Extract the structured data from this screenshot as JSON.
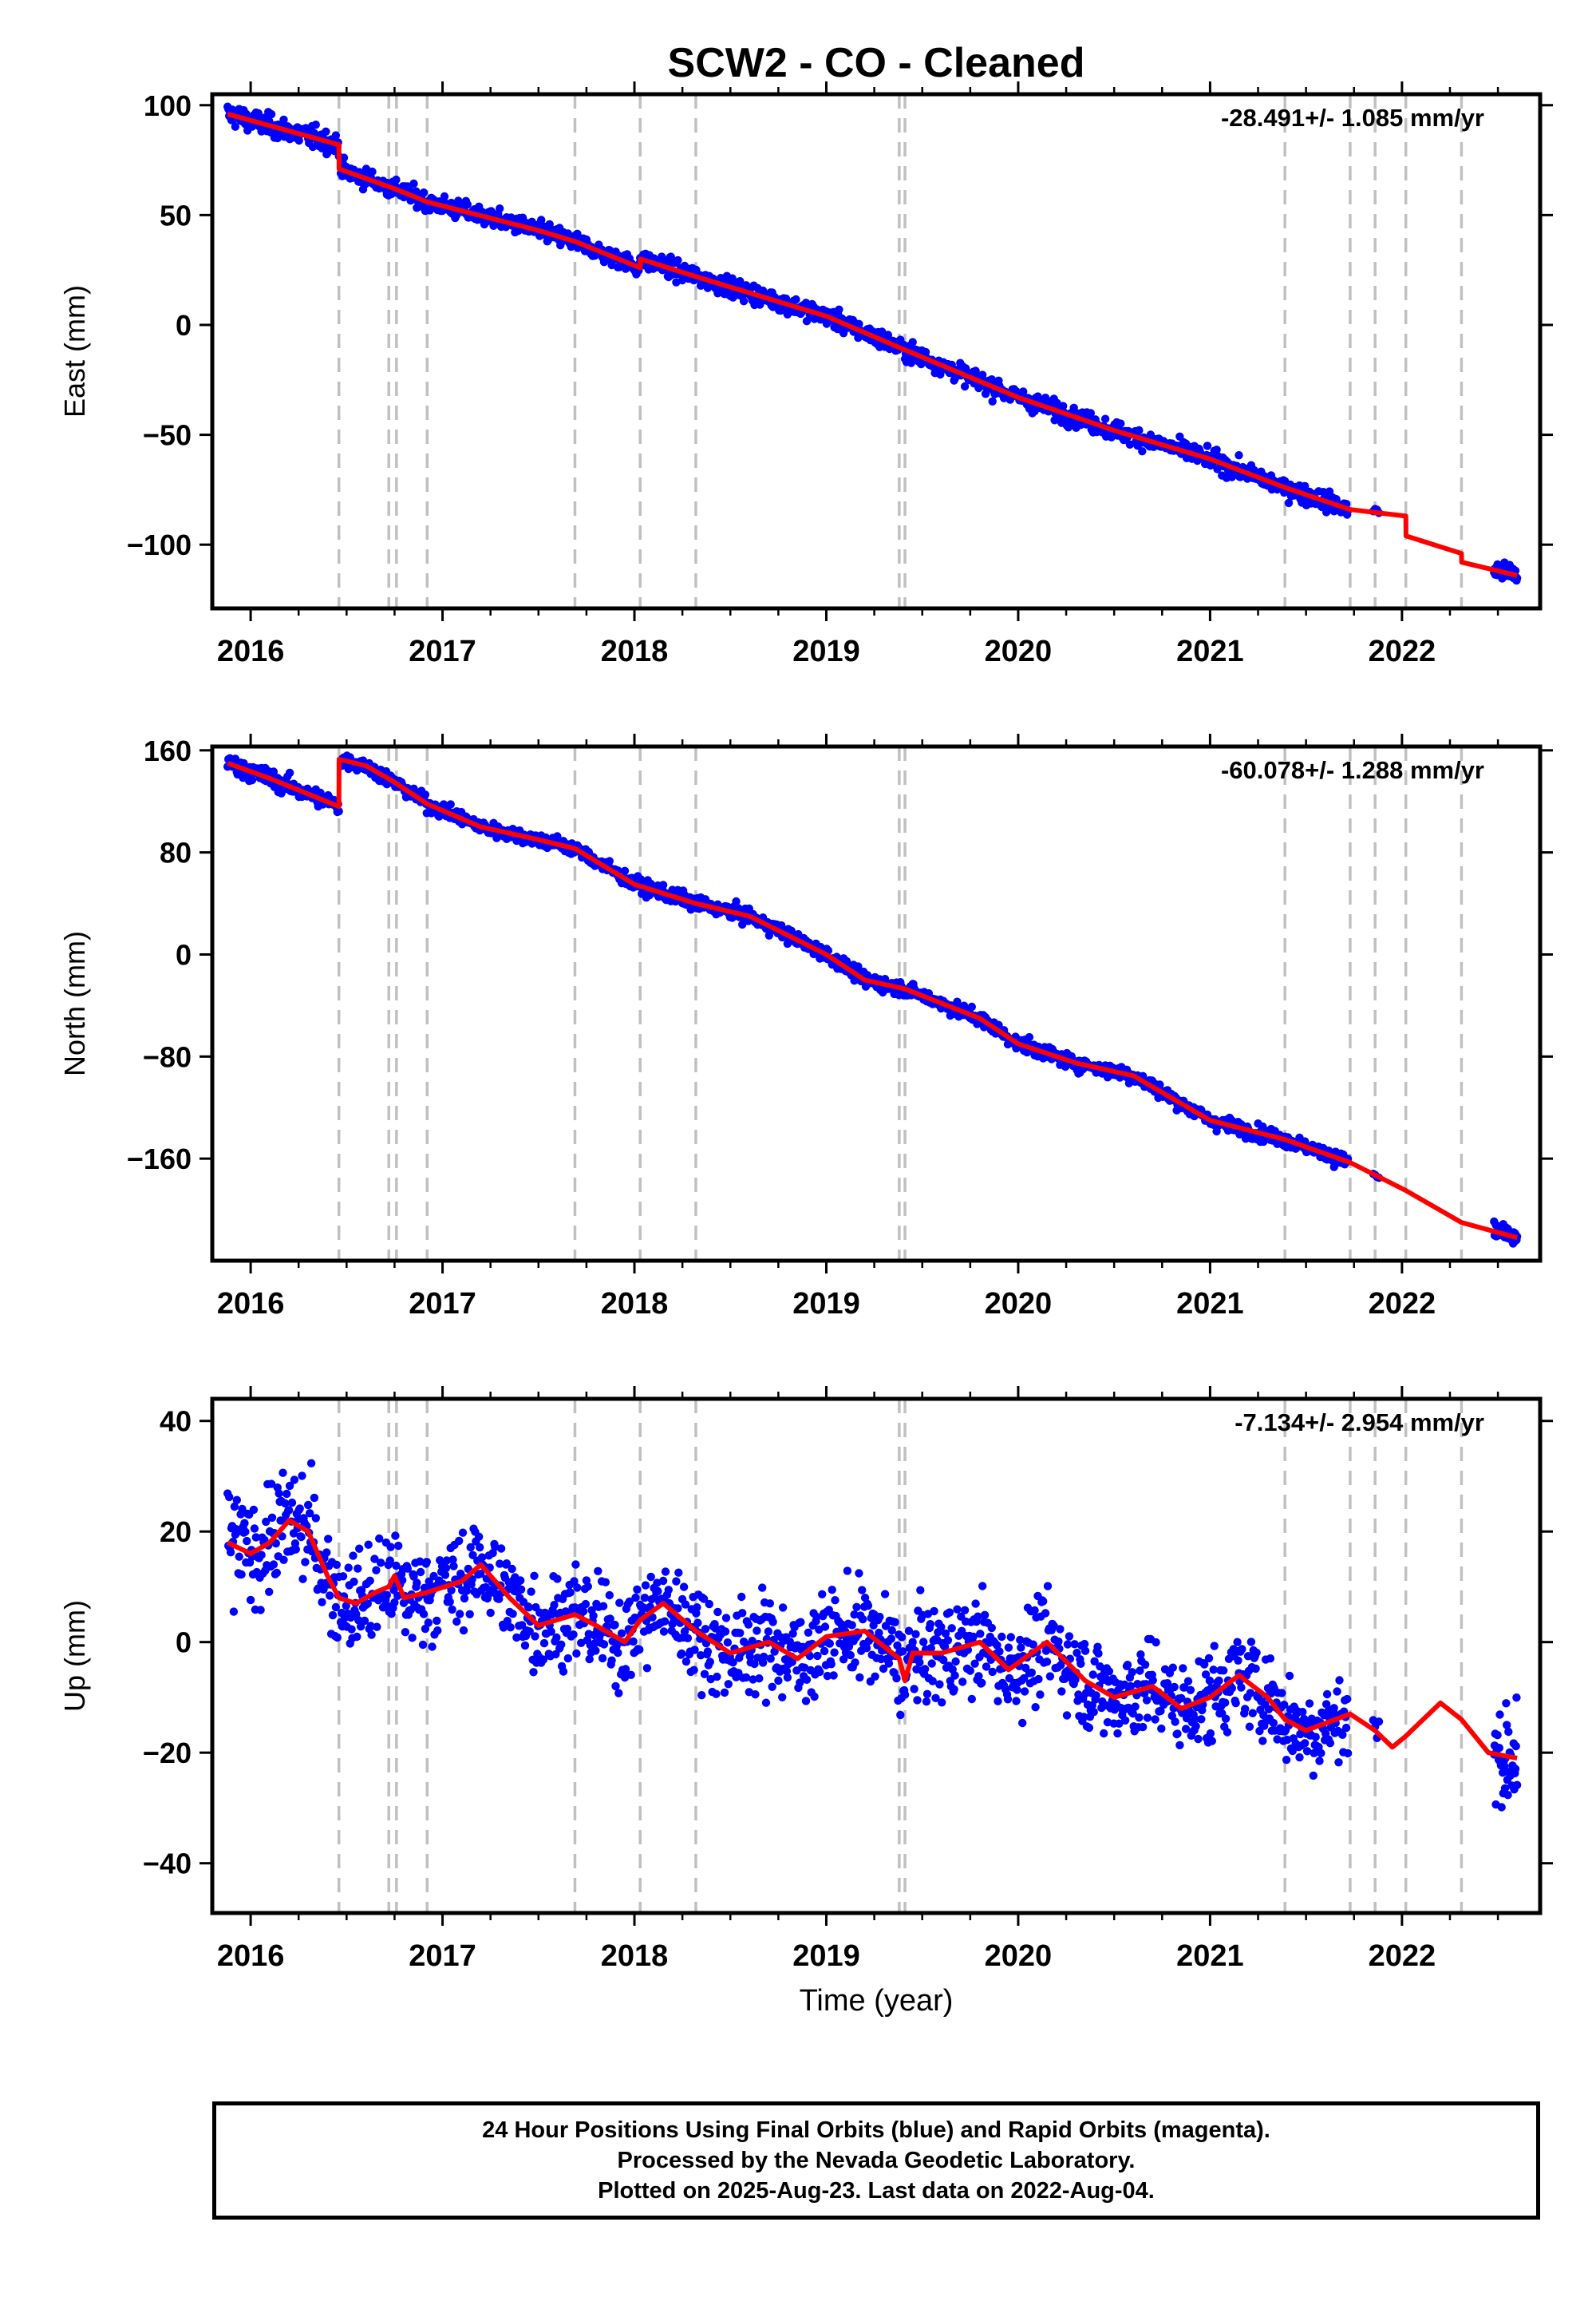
{
  "title": "SCW2  - CO - Cleaned",
  "x_axis_label": "Time (year)",
  "footer": {
    "line1": "24 Hour Positions Using Final Orbits (blue) and Rapid Orbits (magenta).",
    "line2": "Processed by the Nevada Geodetic Laboratory.",
    "line3": "Plotted on 2025-Aug-23. Last data on 2022-Aug-04."
  },
  "colors": {
    "points": "#0000ff",
    "model": "#ff0000",
    "offsets": "#c0c0c0",
    "frame": "#000000"
  },
  "chart_data": [
    {
      "type": "scatter",
      "ylabel": "East (mm)",
      "rate_text": "-28.491+/- 1.085 mm/yr",
      "xlim": [
        2015.8,
        2022.72
      ],
      "ylim": [
        -129,
        105
      ],
      "yticks": [
        100,
        50,
        0,
        -50,
        -100
      ],
      "xticks": [
        2016,
        2017,
        2018,
        2019,
        2020,
        2021,
        2022
      ],
      "offset_lines": [
        2016.46,
        2016.72,
        2016.76,
        2016.92,
        2017.69,
        2018.03,
        2018.32,
        2019.38,
        2019.41,
        2021.39,
        2021.73,
        2021.86,
        2022.02,
        2022.31
      ],
      "model_line": [
        [
          2015.88,
          96
        ],
        [
          2016.46,
          82
        ],
        [
          2016.461,
          71
        ],
        [
          2016.75,
          62
        ],
        [
          2016.92,
          56
        ],
        [
          2017.5,
          43
        ],
        [
          2017.69,
          38
        ],
        [
          2018.03,
          26
        ],
        [
          2018.031,
          30
        ],
        [
          2018.32,
          22
        ],
        [
          2019.0,
          4
        ],
        [
          2019.4,
          -11
        ],
        [
          2020.0,
          -33
        ],
        [
          2020.5,
          -48
        ],
        [
          2021.0,
          -61
        ],
        [
          2021.39,
          -74
        ],
        [
          2021.73,
          -84
        ],
        [
          2022.02,
          -87
        ],
        [
          2022.021,
          -96
        ],
        [
          2022.31,
          -104
        ],
        [
          2022.311,
          -108
        ],
        [
          2022.6,
          -114
        ]
      ],
      "point_segments": [
        {
          "t0": 2015.88,
          "t1": 2016.46,
          "step": 0.004,
          "noise": 3.5
        },
        {
          "t0": 2016.47,
          "t1": 2021.72,
          "step": 0.004,
          "noise": 3.0
        },
        {
          "t0": 2021.85,
          "t1": 2021.88,
          "step": 0.01,
          "noise": 2.0
        },
        {
          "t0": 2022.48,
          "t1": 2022.6,
          "step": 0.003,
          "noise": 3.0
        }
      ]
    },
    {
      "type": "scatter",
      "ylabel": "North (mm)",
      "rate_text": "-60.078+/- 1.288 mm/yr",
      "xlim": [
        2015.8,
        2022.72
      ],
      "ylim": [
        -240,
        163
      ],
      "yticks": [
        160,
        80,
        0,
        -80,
        -160
      ],
      "xticks": [
        2016,
        2017,
        2018,
        2019,
        2020,
        2021,
        2022
      ],
      "offset_lines": [
        2016.46,
        2016.72,
        2016.76,
        2016.92,
        2017.69,
        2018.03,
        2018.32,
        2019.38,
        2019.41,
        2021.39,
        2021.73,
        2021.86,
        2022.02,
        2022.31
      ],
      "model_line": [
        [
          2015.88,
          150
        ],
        [
          2016.1,
          138
        ],
        [
          2016.46,
          116
        ],
        [
          2016.461,
          153
        ],
        [
          2016.6,
          148
        ],
        [
          2016.75,
          135
        ],
        [
          2016.92,
          118
        ],
        [
          2017.2,
          100
        ],
        [
          2017.5,
          90
        ],
        [
          2017.69,
          83
        ],
        [
          2018.0,
          55
        ],
        [
          2018.32,
          40
        ],
        [
          2018.6,
          30
        ],
        [
          2019.0,
          0
        ],
        [
          2019.2,
          -20
        ],
        [
          2019.41,
          -27
        ],
        [
          2019.8,
          -50
        ],
        [
          2020.0,
          -70
        ],
        [
          2020.3,
          -85
        ],
        [
          2020.6,
          -95
        ],
        [
          2021.0,
          -130
        ],
        [
          2021.39,
          -145
        ],
        [
          2021.73,
          -163
        ],
        [
          2022.02,
          -185
        ],
        [
          2022.31,
          -210
        ],
        [
          2022.6,
          -222
        ]
      ],
      "point_segments": [
        {
          "t0": 2015.88,
          "t1": 2016.46,
          "step": 0.004,
          "noise": 5.0
        },
        {
          "t0": 2016.47,
          "t1": 2021.72,
          "step": 0.004,
          "noise": 4.0
        },
        {
          "t0": 2021.85,
          "t1": 2021.88,
          "step": 0.01,
          "noise": 2.0
        },
        {
          "t0": 2022.48,
          "t1": 2022.6,
          "step": 0.003,
          "noise": 5.0
        }
      ]
    },
    {
      "type": "scatter",
      "ylabel": "Up (mm)",
      "rate_text": "-7.134+/- 2.954 mm/yr",
      "xlim": [
        2015.8,
        2022.72
      ],
      "ylim": [
        -49,
        44
      ],
      "yticks": [
        40,
        20,
        0,
        -20,
        -40
      ],
      "xticks": [
        2016,
        2017,
        2018,
        2019,
        2020,
        2021,
        2022
      ],
      "offset_lines": [
        2016.46,
        2016.72,
        2016.76,
        2016.92,
        2017.69,
        2018.03,
        2018.32,
        2019.38,
        2019.41,
        2021.39,
        2021.73,
        2021.86,
        2022.02,
        2022.31
      ],
      "model_line": [
        [
          2015.88,
          18
        ],
        [
          2016.0,
          16
        ],
        [
          2016.1,
          18
        ],
        [
          2016.2,
          22
        ],
        [
          2016.3,
          20
        ],
        [
          2016.4,
          12
        ],
        [
          2016.46,
          8
        ],
        [
          2016.55,
          7
        ],
        [
          2016.65,
          9
        ],
        [
          2016.72,
          10
        ],
        [
          2016.75,
          12
        ],
        [
          2016.8,
          8
        ],
        [
          2016.92,
          9
        ],
        [
          2017.1,
          11
        ],
        [
          2017.2,
          14
        ],
        [
          2017.35,
          8
        ],
        [
          2017.5,
          3
        ],
        [
          2017.69,
          5
        ],
        [
          2017.8,
          3
        ],
        [
          2017.95,
          0
        ],
        [
          2018.03,
          4
        ],
        [
          2018.15,
          7
        ],
        [
          2018.32,
          2
        ],
        [
          2018.5,
          -2
        ],
        [
          2018.7,
          0
        ],
        [
          2018.85,
          -3
        ],
        [
          2019.0,
          1
        ],
        [
          2019.2,
          2
        ],
        [
          2019.38,
          -3
        ],
        [
          2019.41,
          -7
        ],
        [
          2019.45,
          -2
        ],
        [
          2019.6,
          -2
        ],
        [
          2019.8,
          0
        ],
        [
          2019.95,
          -5
        ],
        [
          2020.15,
          0
        ],
        [
          2020.35,
          -7
        ],
        [
          2020.5,
          -10
        ],
        [
          2020.7,
          -8
        ],
        [
          2020.85,
          -12
        ],
        [
          2021.0,
          -10
        ],
        [
          2021.15,
          -6
        ],
        [
          2021.3,
          -10
        ],
        [
          2021.39,
          -14
        ],
        [
          2021.5,
          -16
        ],
        [
          2021.73,
          -13
        ],
        [
          2021.86,
          -16
        ],
        [
          2021.95,
          -19
        ],
        [
          2022.02,
          -17
        ],
        [
          2022.2,
          -11
        ],
        [
          2022.31,
          -14
        ],
        [
          2022.45,
          -20
        ],
        [
          2022.6,
          -21
        ]
      ],
      "point_segments": [
        {
          "t0": 2015.88,
          "t1": 2016.46,
          "step": 0.004,
          "noise": 7.0
        },
        {
          "t0": 2016.47,
          "t1": 2021.72,
          "step": 0.004,
          "noise": 6.0
        },
        {
          "t0": 2021.85,
          "t1": 2021.88,
          "step": 0.01,
          "noise": 2.0
        },
        {
          "t0": 2022.48,
          "t1": 2022.6,
          "step": 0.003,
          "noise": 7.0
        }
      ]
    }
  ]
}
